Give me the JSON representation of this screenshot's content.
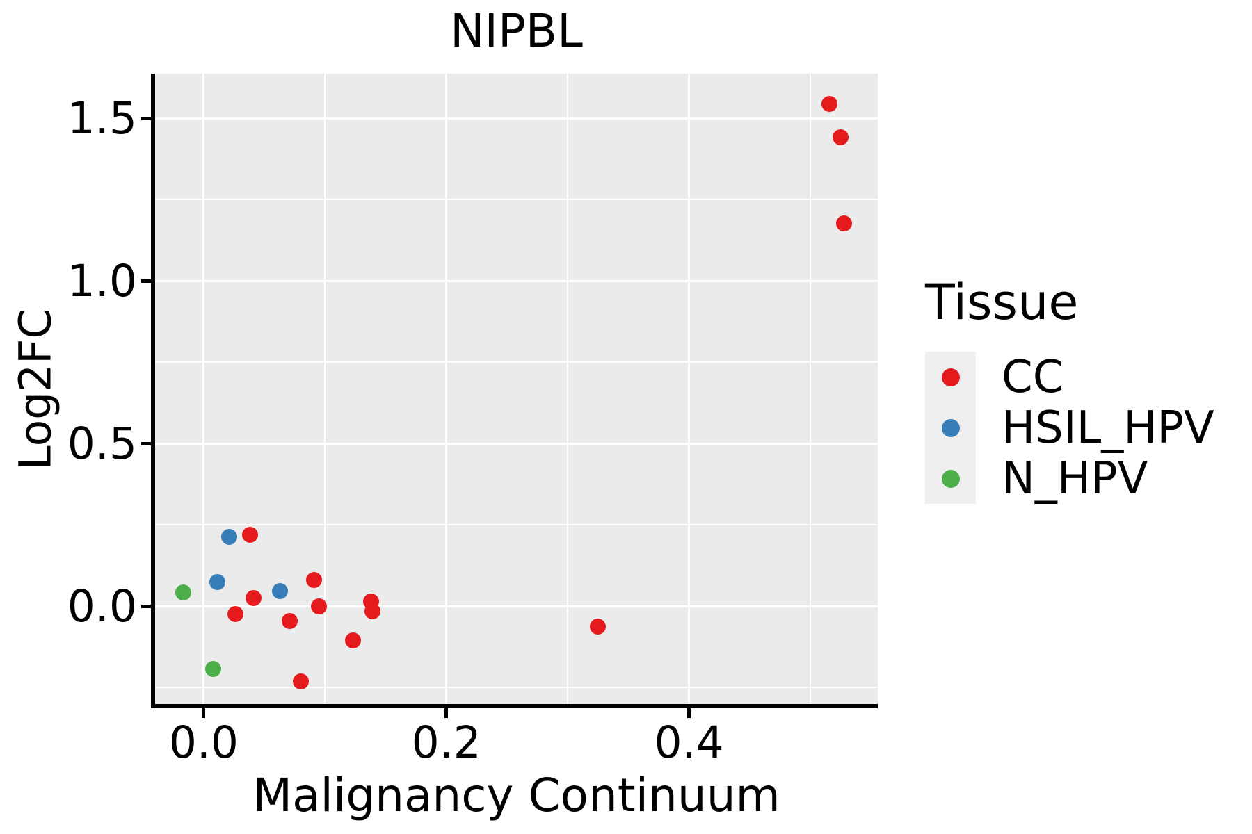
{
  "chart_data": {
    "type": "scatter",
    "title": "NIPBL",
    "xlabel": "Malignancy Continuum",
    "ylabel": "Log2FC",
    "legend_title": "Tissue",
    "legend_position": "right",
    "grid": "on",
    "panel_bg": "#ebebeb",
    "grid_color": "#ffffff",
    "xlim": [
      -0.0401,
      0.5556
    ],
    "ylim": [
      -0.3098,
      1.637
    ],
    "x_major_ticks": [
      0.0,
      0.2,
      0.4
    ],
    "x_tick_labels": [
      "0.0",
      "0.2",
      "0.4"
    ],
    "x_minor_ticks": [
      0.1,
      0.3,
      0.5
    ],
    "y_major_ticks": [
      0.0,
      0.5,
      1.0,
      1.5
    ],
    "y_tick_labels": [
      "0.0",
      "0.5",
      "1.0",
      "1.5"
    ],
    "y_minor_ticks": [
      -0.25,
      0.25,
      0.75,
      1.25
    ],
    "series": [
      {
        "name": "CC",
        "color": "#e41a1c",
        "points": [
          [
            0.516,
            1.545
          ],
          [
            0.525,
            1.442
          ],
          [
            0.528,
            1.177
          ],
          [
            0.038,
            0.22
          ],
          [
            0.041,
            0.024
          ],
          [
            0.091,
            0.081
          ],
          [
            0.095,
            -0.002
          ],
          [
            0.026,
            -0.024
          ],
          [
            0.071,
            -0.045
          ],
          [
            0.138,
            0.015
          ],
          [
            0.139,
            -0.017
          ],
          [
            0.123,
            -0.105
          ],
          [
            0.08,
            -0.231
          ],
          [
            0.325,
            -0.062
          ]
        ]
      },
      {
        "name": "HSIL_HPV",
        "color": "#377eb8",
        "points": [
          [
            0.021,
            0.212
          ],
          [
            0.011,
            0.073
          ],
          [
            0.063,
            0.047
          ]
        ]
      },
      {
        "name": "N_HPV",
        "color": "#4daf4a",
        "points": [
          [
            -0.017,
            0.041
          ],
          [
            0.008,
            -0.194
          ]
        ]
      }
    ]
  }
}
